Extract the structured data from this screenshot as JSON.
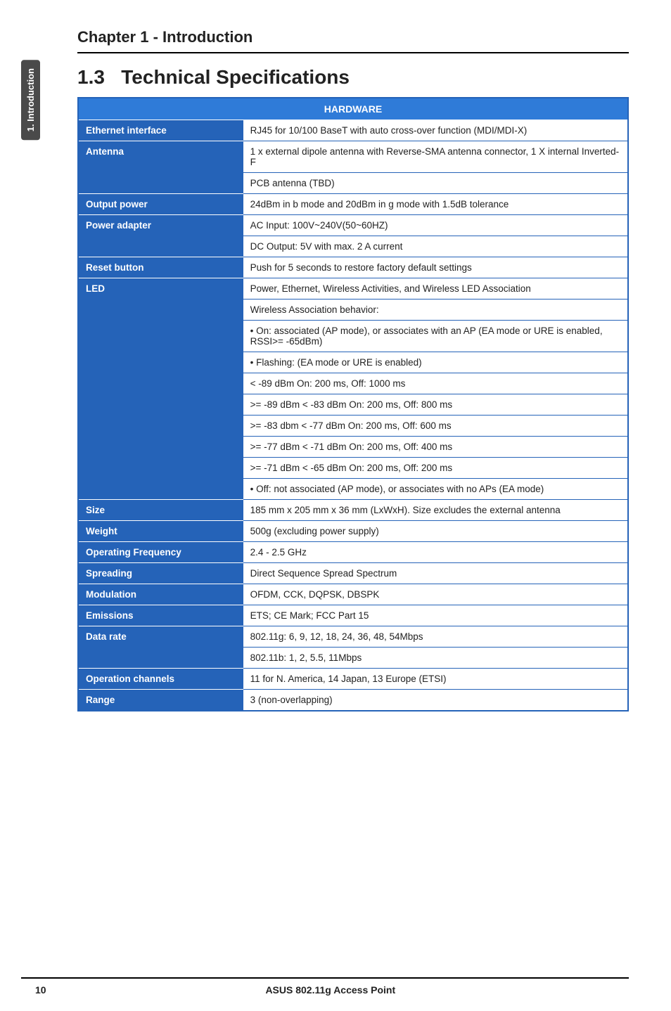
{
  "sideTab": "1. Introduction",
  "chapterHeader": "Chapter 1 - Introduction",
  "sectionNumber": "1.3",
  "sectionTitle": "Technical Specifications",
  "tableHeader": "HARDWARE",
  "colors": {
    "headerBg": "#2f7bd8",
    "labelBg": "#2563b8",
    "borderColor": "#2563b8",
    "sideTabBg": "#4a4a4a"
  },
  "rows": [
    {
      "label": "Ethernet interface",
      "value": "RJ45 for 10/100 BaseT with auto cross-over function (MDI/MDI-X)",
      "rowspan": 1
    },
    {
      "label": "Antenna",
      "value": "1 x external dipole antenna with Reverse-SMA antenna connector, 1 X internal Inverted-F",
      "rowspan": 2
    },
    {
      "value": "PCB antenna (TBD)"
    },
    {
      "label": "Output power",
      "value": "24dBm in b mode and 20dBm in g mode with 1.5dB tolerance",
      "rowspan": 1
    },
    {
      "label": "Power adapter",
      "value": "AC Input: 100V~240V(50~60HZ)",
      "rowspan": 2
    },
    {
      "value": "DC Output: 5V with max. 2 A current"
    },
    {
      "label": "Reset button",
      "value": "Push for 5 seconds to restore factory default settings",
      "rowspan": 1
    },
    {
      "label": "LED",
      "value": "Power, Ethernet, Wireless Activities, and Wireless LED Association",
      "rowspan": 10
    },
    {
      "value": "Wireless Association behavior:"
    },
    {
      "value": "• On: associated (AP mode), or associates with an AP (EA mode or URE is enabled, RSSI>= -65dBm)"
    },
    {
      "value": "• Flashing: (EA mode or URE is enabled)"
    },
    {
      "value": "< -89 dBm On: 200 ms, Off: 1000 ms"
    },
    {
      "value": ">= -89 dBm < -83 dBm On: 200 ms, Off: 800 ms"
    },
    {
      "value": ">= -83 dbm < -77 dBm On: 200 ms, Off: 600 ms"
    },
    {
      "value": ">= -77 dBm < -71 dBm On: 200 ms, Off: 400 ms"
    },
    {
      "value": ">= -71 dBm < -65 dBm On: 200 ms, Off: 200 ms"
    },
    {
      "value": "• Off: not associated (AP mode), or associates with no APs (EA mode)"
    },
    {
      "label": "Size",
      "value": "185 mm x 205 mm x 36 mm (LxWxH). Size excludes the external antenna",
      "rowspan": 1
    },
    {
      "label": "Weight",
      "value": "500g (excluding power supply)",
      "rowspan": 1
    },
    {
      "label": "Operating Frequency",
      "value": "2.4 - 2.5 GHz",
      "rowspan": 1
    },
    {
      "label": "Spreading",
      "value": "Direct Sequence Spread Spectrum",
      "rowspan": 1
    },
    {
      "label": "Modulation",
      "value": "OFDM, CCK, DQPSK, DBSPK",
      "rowspan": 1
    },
    {
      "label": "Emissions",
      "value": "ETS; CE Mark; FCC Part 15",
      "rowspan": 1
    },
    {
      "label": "Data rate",
      "value": "802.11g: 6, 9, 12, 18, 24, 36, 48, 54Mbps",
      "rowspan": 2
    },
    {
      "value": "802.11b: 1, 2, 5.5, 11Mbps"
    },
    {
      "label": "Operation channels",
      "value": "11 for N. America, 14 Japan, 13 Europe (ETSI)",
      "rowspan": 1
    },
    {
      "label": "Range",
      "value": "3 (non-overlapping)",
      "rowspan": 1
    }
  ],
  "footer": {
    "pageNumber": "10",
    "productTitle": "ASUS 802.11g Access Point"
  }
}
